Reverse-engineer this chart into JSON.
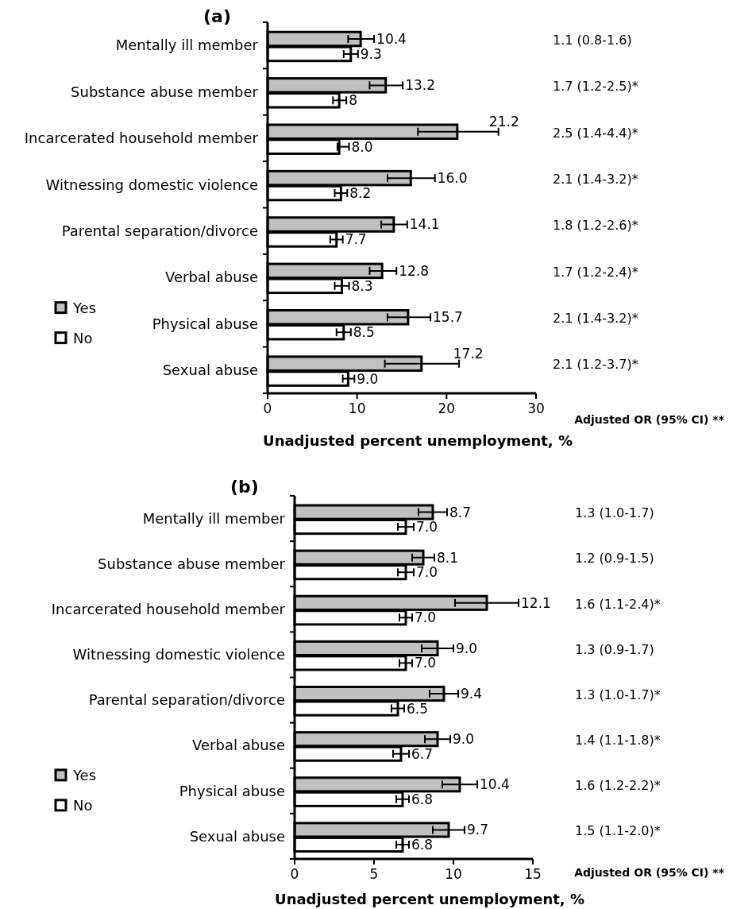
{
  "chart_data": [
    {
      "type": "bar",
      "orientation": "horizontal",
      "title": "(a)",
      "xlabel": "Unadjusted percent unemployment, %",
      "categories": [
        "Mentally ill member",
        "Substance abuse member",
        "Incarcerated household member",
        "Witnessing domestic violence",
        "Parental separation/divorce",
        "Verbal abuse",
        "Physical abuse",
        "Sexual abuse"
      ],
      "series": [
        {
          "name": "Yes",
          "color": "#c0c0c0",
          "values": [
            10.4,
            13.2,
            21.2,
            16.0,
            14.1,
            12.8,
            15.7,
            17.2
          ],
          "errors": [
            [
              9.0,
              11.9
            ],
            [
              11.4,
              15.1
            ],
            [
              16.8,
              25.8
            ],
            [
              13.4,
              18.7
            ],
            [
              12.7,
              15.6
            ],
            [
              11.4,
              14.4
            ],
            [
              13.4,
              18.2
            ],
            [
              13.1,
              21.4
            ]
          ],
          "value_labels": [
            "10.4",
            "13.2",
            "21.2",
            "16.0",
            "14.1",
            "12.8",
            "15.7",
            "17.2"
          ]
        },
        {
          "name": "No",
          "color": "#ffffff",
          "values": [
            9.3,
            8,
            8.0,
            8.2,
            7.7,
            8.3,
            8.5,
            9.0
          ],
          "errors": [
            [
              8.5,
              10.1
            ],
            [
              7.3,
              8.8
            ],
            [
              7.8,
              9.1
            ],
            [
              7.5,
              8.9
            ],
            [
              7.0,
              8.4
            ],
            [
              7.5,
              9.1
            ],
            [
              7.7,
              9.3
            ],
            [
              8.4,
              9.7
            ]
          ],
          "value_labels": [
            "9.3",
            "8",
            "8.0",
            "8.2",
            "7.7",
            "8.3",
            "8.5",
            "9.0"
          ]
        }
      ],
      "xlim": [
        0,
        30
      ],
      "xticks": [
        0,
        10,
        20,
        30
      ],
      "legend": "left",
      "annotations": [
        "1.1  (0.8-1.6)",
        "1.7 (1.2-2.5)*",
        "2.5 (1.4-4.4)*",
        "2.1 (1.4-3.2)*",
        "1.8 (1.2-2.6)*",
        "1.7 (1.2-2.4)*",
        "2.1 (1.4-3.2)*",
        "2.1 (1.2-3.7)*",
        "Adjusted OR (95% CI) **"
      ]
    },
    {
      "type": "bar",
      "orientation": "horizontal",
      "title": "(b)",
      "xlabel": "Unadjusted percent unemployment, %",
      "categories": [
        "Mentally ill member",
        "Substance abuse member",
        "Incarcerated household member",
        "Witnessing domestic violence",
        "Parental separation/divorce",
        "Verbal abuse",
        "Physical abuse",
        "Sexual abuse"
      ],
      "series": [
        {
          "name": "Yes",
          "color": "#c0c0c0",
          "values": [
            8.7,
            8.1,
            12.1,
            9.0,
            9.4,
            9.0,
            10.4,
            9.7
          ],
          "errors": [
            [
              7.8,
              9.6
            ],
            [
              7.4,
              8.8
            ],
            [
              10.1,
              14.1
            ],
            [
              8.0,
              10.0
            ],
            [
              8.5,
              10.3
            ],
            [
              8.2,
              9.8
            ],
            [
              9.3,
              11.5
            ],
            [
              8.7,
              10.7
            ]
          ],
          "value_labels": [
            "8.7",
            "8.1",
            "12.1",
            "9.0",
            "9.4",
            "9.0",
            "10.4",
            "9.7"
          ]
        },
        {
          "name": "No",
          "color": "#ffffff",
          "values": [
            7.0,
            7.0,
            7.0,
            7.0,
            6.5,
            6.7,
            6.8,
            6.8
          ],
          "errors": [
            [
              6.5,
              7.5
            ],
            [
              6.5,
              7.5
            ],
            [
              6.6,
              7.4
            ],
            [
              6.6,
              7.4
            ],
            [
              6.1,
              6.9
            ],
            [
              6.2,
              7.2
            ],
            [
              6.4,
              7.2
            ],
            [
              6.4,
              7.2
            ]
          ],
          "value_labels": [
            "7.0",
            "7.0",
            "7.0",
            "7.0",
            "6.5",
            "6.7",
            "6.8",
            "6.8"
          ]
        }
      ],
      "xlim": [
        0,
        15
      ],
      "xticks": [
        0,
        5,
        10,
        15
      ],
      "legend": "left",
      "annotations": [
        "1.3 (1.0-1.7)",
        "1.2 (0.9-1.5)",
        "1.6 (1.1-2.4)*",
        "1.3 (0.9-1.7)",
        "1.3 (1.0-1.7)*",
        "1.4 (1.1-1.8)*",
        "1.6 (1.2-2.2)*",
        "1.5 (1.1-2.0)*",
        "Adjusted OR  (95% CI) **"
      ]
    }
  ]
}
